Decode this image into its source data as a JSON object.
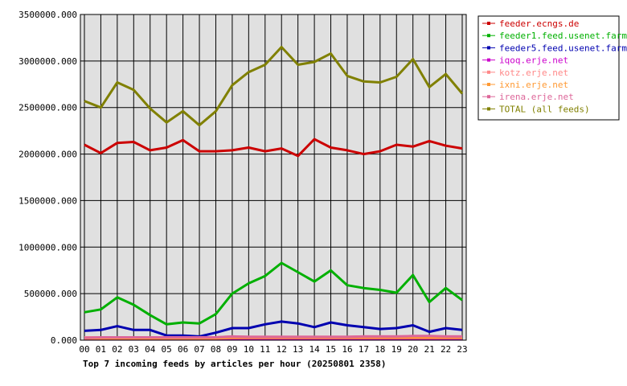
{
  "chart_data": {
    "type": "line",
    "title": "Top 7 incoming feeds by articles per hour (20250801 2358)",
    "categories": [
      "00",
      "01",
      "02",
      "03",
      "04",
      "05",
      "06",
      "07",
      "08",
      "09",
      "10",
      "11",
      "12",
      "13",
      "14",
      "15",
      "16",
      "17",
      "18",
      "19",
      "20",
      "21",
      "22",
      "23"
    ],
    "ylim": [
      0,
      3500000
    ],
    "y_ticks": [
      0,
      500000,
      1000000,
      1500000,
      2000000,
      2500000,
      3000000,
      3500000
    ],
    "y_tick_labels": [
      "0.000",
      "500000.000",
      "1000000.000",
      "1500000.000",
      "2000000.000",
      "2500000.000",
      "3000000.000",
      "3500000.000"
    ],
    "grid": true,
    "legend_position": "right",
    "series": [
      {
        "name": "feeder.ecngs.de",
        "color": "#cc0000",
        "values": [
          2100000,
          2010000,
          2120000,
          2130000,
          2040000,
          2070000,
          2150000,
          2030000,
          2030000,
          2040000,
          2070000,
          2030000,
          2060000,
          1980000,
          2160000,
          2070000,
          2040000,
          2000000,
          2030000,
          2100000,
          2080000,
          2140000,
          2090000,
          2060000
        ]
      },
      {
        "name": "feeder1.feed.usenet.farm",
        "color": "#00b000",
        "values": [
          300000,
          330000,
          460000,
          380000,
          270000,
          170000,
          190000,
          180000,
          280000,
          500000,
          610000,
          690000,
          830000,
          730000,
          630000,
          750000,
          590000,
          560000,
          540000,
          510000,
          700000,
          410000,
          560000,
          430000
        ]
      },
      {
        "name": "feeder5.feed.usenet.farm",
        "color": "#0000b0",
        "values": [
          100000,
          110000,
          150000,
          110000,
          110000,
          50000,
          50000,
          40000,
          80000,
          130000,
          130000,
          170000,
          200000,
          180000,
          140000,
          190000,
          160000,
          140000,
          120000,
          130000,
          160000,
          90000,
          130000,
          110000
        ]
      },
      {
        "name": "iqoq.erje.net",
        "color": "#cc00cc",
        "values": [
          15000,
          15000,
          15000,
          15000,
          15000,
          15000,
          15000,
          15000,
          15000,
          15000,
          15000,
          15000,
          15000,
          15000,
          15000,
          15000,
          15000,
          15000,
          15000,
          15000,
          15000,
          15000,
          15000,
          15000
        ]
      },
      {
        "name": "kotz.erje.net",
        "color": "#ff8888",
        "values": [
          30000,
          30000,
          30000,
          30000,
          30000,
          30000,
          30000,
          30000,
          30000,
          40000,
          35000,
          35000,
          35000,
          35000,
          35000,
          35000,
          35000,
          40000,
          40000,
          40000,
          40000,
          40000,
          40000,
          40000
        ]
      },
      {
        "name": "ixni.erje.net",
        "color": "#ff9933",
        "values": [
          20000,
          20000,
          20000,
          20000,
          20000,
          20000,
          20000,
          20000,
          20000,
          25000,
          25000,
          25000,
          25000,
          25000,
          25000,
          25000,
          25000,
          25000,
          25000,
          25000,
          25000,
          25000,
          25000,
          25000
        ]
      },
      {
        "name": "irena.erje.net",
        "color": "#dd6699",
        "values": [
          25000,
          30000,
          30000,
          30000,
          30000,
          30000,
          30000,
          30000,
          30000,
          40000,
          35000,
          35000,
          35000,
          35000,
          35000,
          35000,
          35000,
          40000,
          40000,
          40000,
          45000,
          45000,
          40000,
          40000
        ]
      },
      {
        "name": "TOTAL (all feeds)",
        "color": "#808000",
        "values": [
          2570000,
          2500000,
          2770000,
          2690000,
          2490000,
          2340000,
          2460000,
          2310000,
          2460000,
          2740000,
          2880000,
          2960000,
          3150000,
          2960000,
          2990000,
          3080000,
          2840000,
          2780000,
          2770000,
          2830000,
          3020000,
          2720000,
          2860000,
          2650000
        ]
      }
    ]
  }
}
